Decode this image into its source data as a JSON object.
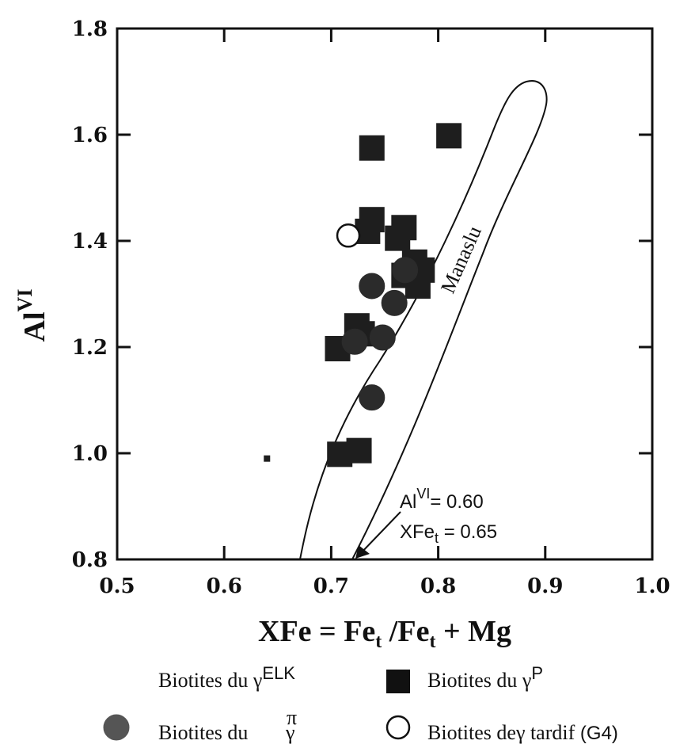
{
  "chart_data": {
    "type": "scatter",
    "title": "",
    "xlabel": {
      "main": "XFe = Fe",
      "sub1": "t",
      "mid": " /Fe",
      "sub2": "t",
      "tail": " + Mg"
    },
    "ylabel": {
      "main": "Al",
      "sup": "VI"
    },
    "xlim": [
      0.5,
      1.0
    ],
    "ylim": [
      0.8,
      1.8
    ],
    "xticks": [
      "0.5",
      "0.6",
      "0.7",
      "0.8",
      "0.9",
      "1.0"
    ],
    "yticks": [
      "0.8",
      "1.0",
      "1.2",
      "1.4",
      "1.6",
      "1.8"
    ],
    "grid": false,
    "field_label": "Manaslu",
    "annotation": {
      "line1_main": "Al",
      "line1_sup": "VI",
      "line1_tail": "= 0.60",
      "line2_main": "XFe",
      "line2_sub": "t",
      "line2_tail": " = 0.65"
    },
    "series": [
      {
        "marker": "square-small",
        "legend_label": "",
        "points": [
          {
            "x": 0.64,
            "y": 0.99
          }
        ]
      },
      {
        "marker": "square",
        "legend_prefix": "Biotites du γ",
        "legend_sup": "P",
        "points": [
          {
            "x": 0.738,
            "y": 1.575
          },
          {
            "x": 0.81,
            "y": 1.598
          },
          {
            "x": 0.738,
            "y": 1.44
          },
          {
            "x": 0.734,
            "y": 1.418
          },
          {
            "x": 0.768,
            "y": 1.425
          },
          {
            "x": 0.762,
            "y": 1.405
          },
          {
            "x": 0.778,
            "y": 1.36
          },
          {
            "x": 0.785,
            "y": 1.345
          },
          {
            "x": 0.768,
            "y": 1.335
          },
          {
            "x": 0.781,
            "y": 1.315
          },
          {
            "x": 0.724,
            "y": 1.24
          },
          {
            "x": 0.729,
            "y": 1.225
          },
          {
            "x": 0.706,
            "y": 1.197
          },
          {
            "x": 0.708,
            "y": 0.998
          },
          {
            "x": 0.726,
            "y": 1.005
          }
        ]
      },
      {
        "marker": "circle-filled",
        "legend_prefix": "Biotites du",
        "legend_stack_top": "π",
        "legend_stack_bottom": "γ",
        "points": [
          {
            "x": 0.738,
            "y": 1.315
          },
          {
            "x": 0.769,
            "y": 1.345
          },
          {
            "x": 0.759,
            "y": 1.283
          },
          {
            "x": 0.748,
            "y": 1.218
          },
          {
            "x": 0.722,
            "y": 1.21
          },
          {
            "x": 0.738,
            "y": 1.105
          }
        ]
      },
      {
        "marker": "circle-open",
        "legend_prefix": "Biotites de",
        "legend_gamma": "γ",
        "legend_tail": " tardif",
        "legend_sans": " (G4)",
        "points": [
          {
            "x": 0.716,
            "y": 1.41
          }
        ]
      }
    ],
    "legend_elk": {
      "prefix": "Biotites du γ",
      "sup": "ELK"
    }
  }
}
